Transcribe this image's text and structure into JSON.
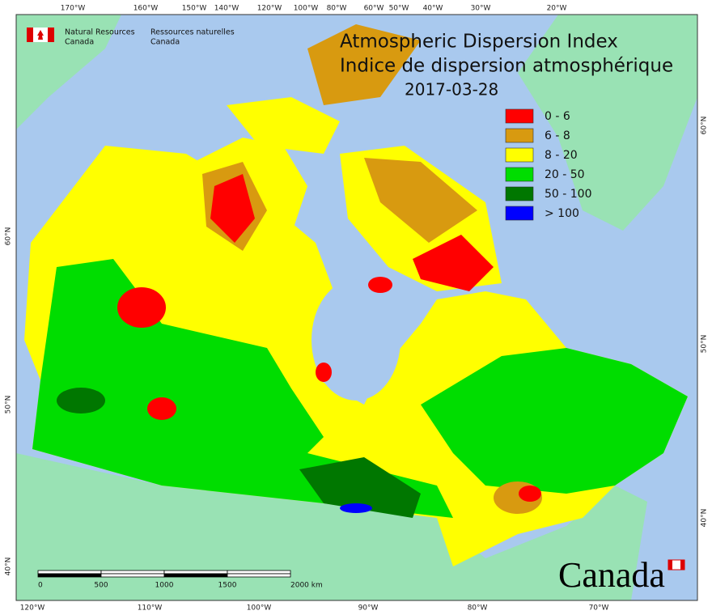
{
  "header": {
    "agency_en": [
      "Natural Resources",
      "Canada"
    ],
    "agency_fr": [
      "Ressources naturelles",
      "Canada"
    ]
  },
  "title": "Atmospheric Dispersion Index",
  "subtitle": "Indice de dispersion atmosphérique",
  "date": "2017-03-28",
  "legend": [
    {
      "label": "0 - 6",
      "color": "#ff0000"
    },
    {
      "label": "6 - 8",
      "color": "#d89a10"
    },
    {
      "label": "8 - 20",
      "color": "#ffff00"
    },
    {
      "label": "20 - 50",
      "color": "#00dd00"
    },
    {
      "label": "50 - 100",
      "color": "#007700"
    },
    {
      "label": "> 100",
      "color": "#0000ff"
    }
  ],
  "graticule": {
    "top": [
      "170°W",
      "160°W",
      "150°W",
      "140°W",
      "120°W",
      "100°W",
      "80°W",
      "60°W",
      "50°W",
      "40°W",
      "30°W",
      "20°W"
    ],
    "bottom": [
      "120°W",
      "110°W",
      "100°W",
      "90°W",
      "80°W",
      "70°W"
    ],
    "left": [
      "60°N",
      "50°N",
      "40°N"
    ],
    "right": [
      "60°N",
      "50°N",
      "40°N"
    ]
  },
  "scale_bar": {
    "labels": [
      "0",
      "500",
      "1000",
      "1500",
      "2000 km"
    ]
  },
  "wordmark": "Canada"
}
